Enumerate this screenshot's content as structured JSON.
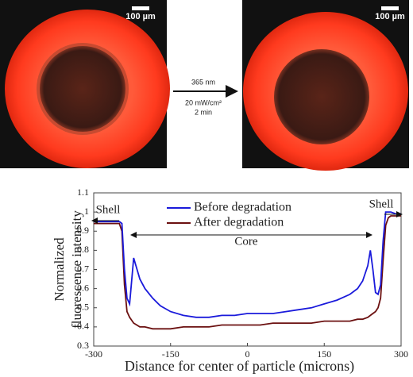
{
  "images": [
    {
      "scale_label": "100 µm"
    },
    {
      "scale_label": "100 µm"
    }
  ],
  "arrow": {
    "lines": [
      "365 nm",
      "20 mW/cm²",
      "2 min"
    ]
  },
  "chart_data": {
    "type": "line",
    "xlabel": "Distance for center of particle (microns)",
    "ylabel": [
      "Normalized",
      "fluorescence intensity"
    ],
    "x": [
      -300,
      -270,
      -250,
      -245,
      -240,
      -235,
      -230,
      -222,
      -210,
      -200,
      -185,
      -170,
      -150,
      -125,
      -100,
      -75,
      -50,
      -25,
      0,
      25,
      50,
      75,
      100,
      125,
      150,
      175,
      200,
      215,
      225,
      235,
      240,
      245,
      250,
      255,
      260,
      265,
      270,
      275,
      280,
      290,
      300
    ],
    "series": [
      {
        "name": "Before degradation",
        "color": "#1a1adb",
        "values": [
          0.95,
          0.95,
          0.95,
          0.94,
          0.7,
          0.55,
          0.52,
          0.76,
          0.65,
          0.6,
          0.55,
          0.51,
          0.48,
          0.46,
          0.45,
          0.45,
          0.46,
          0.46,
          0.47,
          0.47,
          0.47,
          0.48,
          0.49,
          0.5,
          0.52,
          0.54,
          0.57,
          0.6,
          0.64,
          0.72,
          0.8,
          0.7,
          0.58,
          0.57,
          0.62,
          0.85,
          1.0,
          1.0,
          1.0,
          0.99,
          0.99
        ]
      },
      {
        "name": "After degradation",
        "color": "#6b1010",
        "values": [
          0.94,
          0.94,
          0.94,
          0.9,
          0.62,
          0.48,
          0.45,
          0.42,
          0.4,
          0.4,
          0.39,
          0.39,
          0.39,
          0.4,
          0.4,
          0.4,
          0.41,
          0.41,
          0.41,
          0.41,
          0.42,
          0.42,
          0.42,
          0.42,
          0.43,
          0.43,
          0.43,
          0.44,
          0.44,
          0.45,
          0.46,
          0.47,
          0.48,
          0.5,
          0.55,
          0.75,
          0.93,
          0.97,
          0.98,
          0.98,
          0.98
        ]
      }
    ],
    "annotations": [
      "Shell",
      "Core",
      "Shell"
    ],
    "xlim": [
      -300,
      300
    ],
    "xticks": [
      -300,
      -150,
      0,
      150,
      300
    ],
    "ylim": [
      0.3,
      1.1
    ],
    "yticks": [
      0.3,
      0.4,
      0.5,
      0.6,
      0.7,
      0.8,
      0.9,
      1,
      1.1
    ]
  }
}
